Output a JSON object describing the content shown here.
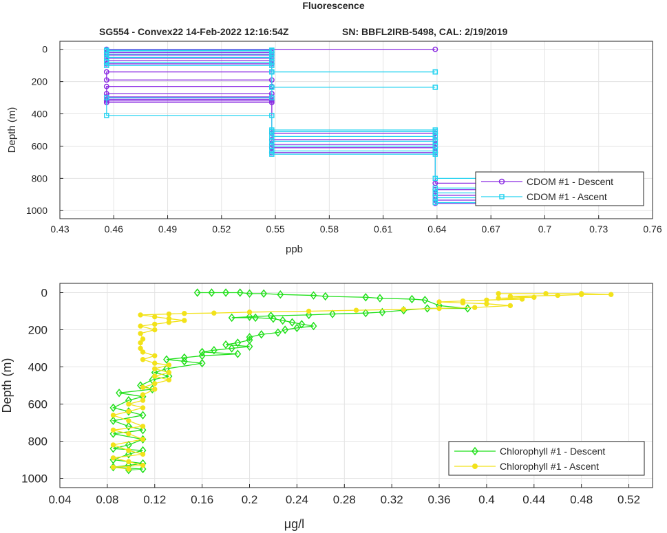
{
  "figure_title": "Fluorescence",
  "subtitle_left": "SG554 - Convex22 14-Feb-2022 12:16:54Z",
  "subtitle_right": "SN: BBFL2IRB-5498, CAL: 2/19/2019",
  "colors": {
    "cdom_descent": "#8a2be2",
    "cdom_ascent": "#27d3f0",
    "chl_descent": "#22e01c",
    "chl_ascent": "#f2e21a",
    "grid": "#e3e3e3"
  },
  "chart_data": [
    {
      "type": "line",
      "xlabel": "ppb",
      "ylabel": "Depth (m)",
      "xlim": [
        0.43,
        0.76
      ],
      "ylim": [
        1050,
        -50
      ],
      "y_reversed": true,
      "grid": true,
      "legend_placement": "bottom-right",
      "xticks": [
        "0.43",
        "0.46",
        "0.49",
        "0.52",
        "0.55",
        "0.58",
        "0.61",
        "0.64",
        "0.67",
        "0.7",
        "0.73",
        "0.76"
      ],
      "yticks": [
        "0",
        "200",
        "400",
        "600",
        "800",
        "1000"
      ],
      "series": [
        {
          "name": "CDOM #1 - Descent",
          "marker": "circle",
          "color": "#8a2be2",
          "points": [
            [
              0.639,
              0
            ],
            [
              0.456,
              0
            ],
            [
              0.456,
              20
            ],
            [
              0.548,
              20
            ],
            [
              0.548,
              35
            ],
            [
              0.456,
              35
            ],
            [
              0.456,
              55
            ],
            [
              0.548,
              55
            ],
            [
              0.548,
              70
            ],
            [
              0.456,
              70
            ],
            [
              0.456,
              90
            ],
            [
              0.548,
              90
            ],
            [
              0.548,
              140
            ],
            [
              0.456,
              140
            ],
            [
              0.456,
              190
            ],
            [
              0.548,
              190
            ],
            [
              0.548,
              230
            ],
            [
              0.456,
              230
            ],
            [
              0.456,
              275
            ],
            [
              0.548,
              275
            ],
            [
              0.548,
              295
            ],
            [
              0.456,
              295
            ],
            [
              0.456,
              310
            ],
            [
              0.548,
              310
            ],
            [
              0.548,
              330
            ],
            [
              0.456,
              330
            ],
            [
              0.456,
              320
            ],
            [
              0.548,
              320
            ],
            [
              0.548,
              520
            ],
            [
              0.639,
              520
            ],
            [
              0.639,
              560
            ],
            [
              0.548,
              560
            ],
            [
              0.548,
              590
            ],
            [
              0.639,
              590
            ],
            [
              0.639,
              610
            ],
            [
              0.548,
              610
            ],
            [
              0.548,
              640
            ],
            [
              0.639,
              640
            ],
            [
              0.639,
              830
            ],
            [
              0.73,
              830
            ],
            [
              0.73,
              870
            ],
            [
              0.639,
              870
            ],
            [
              0.639,
              905
            ],
            [
              0.73,
              905
            ],
            [
              0.73,
              935
            ],
            [
              0.639,
              935
            ],
            [
              0.639,
              955
            ],
            [
              0.73,
              955
            ]
          ]
        },
        {
          "name": "CDOM #1 - Ascent",
          "marker": "square",
          "color": "#27d3f0",
          "points": [
            [
              0.73,
              950
            ],
            [
              0.639,
              950
            ],
            [
              0.639,
              920
            ],
            [
              0.73,
              920
            ],
            [
              0.73,
              890
            ],
            [
              0.639,
              890
            ],
            [
              0.639,
              860
            ],
            [
              0.73,
              860
            ],
            [
              0.73,
              800
            ],
            [
              0.639,
              800
            ],
            [
              0.639,
              650
            ],
            [
              0.548,
              650
            ],
            [
              0.548,
              630
            ],
            [
              0.639,
              630
            ],
            [
              0.639,
              600
            ],
            [
              0.548,
              600
            ],
            [
              0.548,
              570
            ],
            [
              0.639,
              570
            ],
            [
              0.639,
              540
            ],
            [
              0.548,
              540
            ],
            [
              0.548,
              510
            ],
            [
              0.639,
              510
            ],
            [
              0.639,
              500
            ],
            [
              0.548,
              500
            ],
            [
              0.548,
              410
            ],
            [
              0.456,
              410
            ],
            [
              0.456,
              300
            ],
            [
              0.548,
              300
            ],
            [
              0.548,
              235
            ],
            [
              0.639,
              235
            ],
            [
              0.639,
              235
            ],
            [
              0.548,
              235
            ],
            [
              0.548,
              140
            ],
            [
              0.639,
              140
            ],
            [
              0.639,
              140
            ],
            [
              0.548,
              140
            ],
            [
              0.548,
              100
            ],
            [
              0.456,
              100
            ],
            [
              0.456,
              80
            ],
            [
              0.548,
              80
            ],
            [
              0.548,
              50
            ],
            [
              0.456,
              50
            ],
            [
              0.456,
              30
            ],
            [
              0.548,
              30
            ],
            [
              0.548,
              10
            ],
            [
              0.456,
              10
            ],
            [
              0.456,
              5
            ],
            [
              0.548,
              5
            ]
          ]
        }
      ]
    },
    {
      "type": "line",
      "xlabel": "μg/l",
      "ylabel": "Depth (m)",
      "xlim": [
        0.04,
        0.54
      ],
      "ylim": [
        1050,
        -50
      ],
      "y_reversed": true,
      "grid": true,
      "legend_placement": "bottom-right",
      "xticks": [
        "0.04",
        "0.08",
        "0.12",
        "0.16",
        "0.2",
        "0.24",
        "0.28",
        "0.32",
        "0.36",
        "0.4",
        "0.44",
        "0.48",
        "0.52"
      ],
      "yticks": [
        "0",
        "200",
        "400",
        "600",
        "800",
        "1000"
      ],
      "series": [
        {
          "name": "Chlorophyll #1 - Descent",
          "marker": "diamond",
          "color": "#22e01c",
          "points": [
            [
              0.156,
              0
            ],
            [
              0.168,
              0
            ],
            [
              0.18,
              0
            ],
            [
              0.192,
              0
            ],
            [
              0.2,
              5
            ],
            [
              0.212,
              5
            ],
            [
              0.226,
              10
            ],
            [
              0.254,
              15
            ],
            [
              0.264,
              20
            ],
            [
              0.298,
              25
            ],
            [
              0.31,
              30
            ],
            [
              0.337,
              35
            ],
            [
              0.348,
              40
            ],
            [
              0.36,
              70
            ],
            [
              0.384,
              85
            ],
            [
              0.35,
              85
            ],
            [
              0.33,
              95
            ],
            [
              0.312,
              105
            ],
            [
              0.298,
              110
            ],
            [
              0.27,
              115
            ],
            [
              0.25,
              120
            ],
            [
              0.218,
              125
            ],
            [
              0.2,
              130
            ],
            [
              0.185,
              135
            ],
            [
              0.205,
              135
            ],
            [
              0.22,
              140
            ],
            [
              0.228,
              150
            ],
            [
              0.236,
              160
            ],
            [
              0.244,
              170
            ],
            [
              0.254,
              180
            ],
            [
              0.24,
              190
            ],
            [
              0.23,
              200
            ],
            [
              0.224,
              215
            ],
            [
              0.21,
              225
            ],
            [
              0.2,
              240
            ],
            [
              0.2,
              255
            ],
            [
              0.19,
              270
            ],
            [
              0.18,
              280
            ],
            [
              0.2,
              290
            ],
            [
              0.185,
              300
            ],
            [
              0.17,
              310
            ],
            [
              0.16,
              320
            ],
            [
              0.19,
              330
            ],
            [
              0.16,
              340
            ],
            [
              0.145,
              350
            ],
            [
              0.13,
              360
            ],
            [
              0.145,
              370
            ],
            [
              0.16,
              380
            ],
            [
              0.13,
              410
            ],
            [
              0.12,
              430
            ],
            [
              0.132,
              450
            ],
            [
              0.118,
              470
            ],
            [
              0.108,
              500
            ],
            [
              0.118,
              520
            ],
            [
              0.09,
              540
            ],
            [
              0.11,
              560
            ],
            [
              0.098,
              580
            ],
            [
              0.085,
              620
            ],
            [
              0.098,
              640
            ],
            [
              0.11,
              660
            ],
            [
              0.085,
              690
            ],
            [
              0.098,
              720
            ],
            [
              0.11,
              740
            ],
            [
              0.085,
              760
            ],
            [
              0.11,
              790
            ],
            [
              0.098,
              820
            ],
            [
              0.085,
              840
            ],
            [
              0.11,
              850
            ],
            [
              0.098,
              870
            ],
            [
              0.085,
              900
            ],
            [
              0.11,
              920
            ],
            [
              0.098,
              930
            ],
            [
              0.085,
              940
            ],
            [
              0.11,
              950
            ],
            [
              0.098,
              955
            ]
          ]
        },
        {
          "name": "Chlorophyll #1 - Ascent",
          "marker": "circle-filled",
          "color": "#f2e21a",
          "points": [
            [
              0.098,
              950
            ],
            [
              0.085,
              940
            ],
            [
              0.11,
              930
            ],
            [
              0.098,
              910
            ],
            [
              0.085,
              890
            ],
            [
              0.11,
              870
            ],
            [
              0.098,
              850
            ],
            [
              0.085,
              820
            ],
            [
              0.11,
              790
            ],
            [
              0.098,
              760
            ],
            [
              0.085,
              740
            ],
            [
              0.11,
              720
            ],
            [
              0.098,
              690
            ],
            [
              0.085,
              660
            ],
            [
              0.098,
              640
            ],
            [
              0.11,
              620
            ],
            [
              0.098,
              600
            ],
            [
              0.11,
              580
            ],
            [
              0.11,
              550
            ],
            [
              0.12,
              520
            ],
            [
              0.11,
              510
            ],
            [
              0.12,
              490
            ],
            [
              0.132,
              470
            ],
            [
              0.12,
              450
            ],
            [
              0.132,
              430
            ],
            [
              0.12,
              410
            ],
            [
              0.132,
              390
            ],
            [
              0.12,
              380
            ],
            [
              0.11,
              360
            ],
            [
              0.12,
              340
            ],
            [
              0.11,
              320
            ],
            [
              0.108,
              300
            ],
            [
              0.108,
              270
            ],
            [
              0.11,
              250
            ],
            [
              0.108,
              220
            ],
            [
              0.12,
              200
            ],
            [
              0.108,
              180
            ],
            [
              0.12,
              170
            ],
            [
              0.132,
              160
            ],
            [
              0.145,
              150
            ],
            [
              0.132,
              140
            ],
            [
              0.12,
              130
            ],
            [
              0.108,
              120
            ],
            [
              0.132,
              115
            ],
            [
              0.145,
              112
            ],
            [
              0.17,
              110
            ],
            [
              0.2,
              105
            ],
            [
              0.25,
              100
            ],
            [
              0.29,
              95
            ],
            [
              0.33,
              90
            ],
            [
              0.36,
              85
            ],
            [
              0.39,
              80
            ],
            [
              0.42,
              70
            ],
            [
              0.4,
              60
            ],
            [
              0.38,
              55
            ],
            [
              0.36,
              50
            ],
            [
              0.38,
              45
            ],
            [
              0.4,
              40
            ],
            [
              0.43,
              35
            ],
            [
              0.41,
              30
            ],
            [
              0.44,
              25
            ],
            [
              0.42,
              20
            ],
            [
              0.46,
              15
            ],
            [
              0.48,
              10
            ],
            [
              0.505,
              10
            ],
            [
              0.48,
              5
            ],
            [
              0.45,
              5
            ],
            [
              0.41,
              5
            ]
          ]
        }
      ]
    }
  ]
}
